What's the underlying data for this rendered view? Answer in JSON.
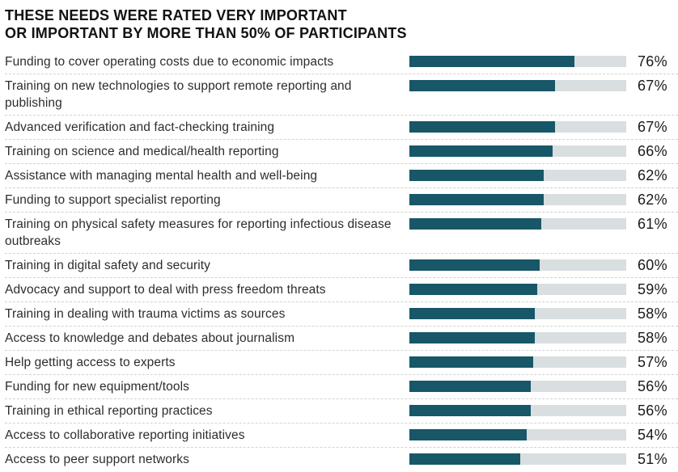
{
  "title": {
    "line1": "THESE NEEDS WERE RATED VERY IMPORTANT",
    "line2": "OR IMPORTANT BY MORE THAN 50% OF PARTICIPANTS"
  },
  "chart_data": {
    "type": "bar",
    "orientation": "horizontal",
    "title": "THESE NEEDS WERE RATED VERY IMPORTANT OR IMPORTANT BY MORE THAN 50% OF PARTICIPANTS",
    "categories": [
      "Funding to cover operating costs due to economic impacts",
      "Training on new technologies to support remote reporting and publishing",
      "Advanced verification and fact-checking training",
      "Training on science and medical/health reporting",
      "Assistance with managing mental health and well-being",
      "Funding to support specialist reporting",
      "Training on physical safety measures for reporting infectious disease outbreaks",
      "Training in digital safety and security",
      "Advocacy and support to deal with press freedom threats",
      "Training in dealing with trauma victims as sources",
      "Access to knowledge and debates about journalism",
      "Help getting access to experts",
      "Funding for new equipment/tools",
      "Training in ethical reporting practices",
      "Access to collaborative reporting initiatives",
      "Access to peer support networks"
    ],
    "values": [
      76,
      67,
      67,
      66,
      62,
      62,
      61,
      60,
      59,
      58,
      58,
      57,
      56,
      56,
      54,
      51
    ],
    "value_suffix": "%",
    "xlim": [
      0,
      100
    ],
    "grid": false,
    "legend": false,
    "colors": {
      "bar_fill": "#175767",
      "bar_track": "#d9dee0",
      "title_text": "#121212",
      "label_text": "#2d2d2d",
      "separator": "#d2d2d2"
    }
  }
}
